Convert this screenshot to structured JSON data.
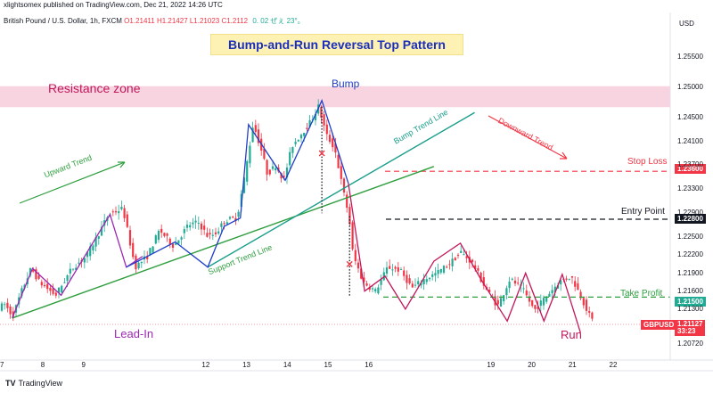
{
  "header": {
    "publisher_line": "xlightsomex published on TradingView.com, Dec 21, 2022 14:26 UTC",
    "symbol": "British Pound / U.S. Dollar, 1h, FXCM",
    "ohlc": "O1.21411  H1.21427  L1.21023  C1.2112",
    "change": "0. 02 ぜぇ 23°。"
  },
  "axis": {
    "currency": "USD",
    "brand": "TradingView",
    "brand_logo": "TV"
  },
  "chart_data": {
    "type": "candlestick",
    "title": "Bump-and-Run Reversal Top Pattern",
    "ylim": [
      1.2045,
      1.2625
    ],
    "yticks": [
      1.255,
      1.25,
      1.245,
      1.241,
      1.237,
      1.233,
      1.229,
      1.225,
      1.222,
      1.219,
      1.216,
      1.213,
      1.2072
    ],
    "xticks": [
      {
        "label": "7",
        "x": 7
      },
      {
        "label": "8",
        "x": 8
      },
      {
        "label": "9",
        "x": 9
      },
      {
        "label": "12",
        "x": 12
      },
      {
        "label": "13",
        "x": 13
      },
      {
        "label": "14",
        "x": 14
      },
      {
        "label": "15",
        "x": 15
      },
      {
        "label": "16",
        "x": 16
      },
      {
        "label": "19",
        "x": 19
      },
      {
        "label": "20",
        "x": 20
      },
      {
        "label": "21",
        "x": 21
      },
      {
        "label": "22",
        "x": 22
      }
    ],
    "xlim": [
      6.95,
      23.4
    ],
    "price_path": [
      [
        6.95,
        1.2132
      ],
      [
        7.1,
        1.2138
      ],
      [
        7.3,
        1.2118
      ],
      [
        7.5,
        1.2158
      ],
      [
        7.75,
        1.2198
      ],
      [
        7.95,
        1.2175
      ],
      [
        8.35,
        1.2153
      ],
      [
        8.75,
        1.2198
      ],
      [
        9.1,
        1.2218
      ],
      [
        9.4,
        1.2255
      ],
      [
        9.65,
        1.2288
      ],
      [
        10,
        1.2298
      ],
      [
        10.3,
        1.22
      ],
      [
        10.6,
        1.2218
      ],
      [
        10.9,
        1.2262
      ],
      [
        11.25,
        1.2235
      ],
      [
        11.6,
        1.227
      ],
      [
        11.85,
        1.2275
      ],
      [
        12.1,
        1.225
      ],
      [
        12.3,
        1.2258
      ],
      [
        12.5,
        1.2278
      ],
      [
        12.8,
        1.2282
      ],
      [
        13,
        1.2355
      ],
      [
        13.2,
        1.244
      ],
      [
        13.4,
        1.2395
      ],
      [
        13.55,
        1.2355
      ],
      [
        13.75,
        1.237
      ],
      [
        13.95,
        1.2345
      ],
      [
        14.15,
        1.2402
      ],
      [
        14.35,
        1.242
      ],
      [
        14.6,
        1.2442
      ],
      [
        14.8,
        1.2468
      ],
      [
        15,
        1.242
      ],
      [
        15.2,
        1.2398
      ],
      [
        15.4,
        1.233
      ],
      [
        15.55,
        1.2285
      ],
      [
        15.65,
        1.222
      ],
      [
        15.9,
        1.2175
      ],
      [
        16.2,
        1.216
      ],
      [
        16.5,
        1.22
      ],
      [
        16.8,
        1.2195
      ],
      [
        17.1,
        1.2165
      ],
      [
        17.4,
        1.218
      ],
      [
        17.7,
        1.219
      ],
      [
        18,
        1.2205
      ],
      [
        18.3,
        1.2225
      ],
      [
        18.6,
        1.2205
      ],
      [
        18.9,
        1.2165
      ],
      [
        19.2,
        1.2135
      ],
      [
        19.5,
        1.218
      ],
      [
        19.8,
        1.2165
      ],
      [
        20.1,
        1.2128
      ],
      [
        20.4,
        1.2152
      ],
      [
        20.7,
        1.2175
      ],
      [
        21,
        1.2185
      ],
      [
        21.25,
        1.215
      ],
      [
        21.5,
        1.2112
      ]
    ],
    "annotations": {
      "resistance_zone": {
        "label": "Resistance zone",
        "y_top": 1.2502,
        "y_bottom": 1.2467
      },
      "bump": {
        "label": "Bump"
      },
      "lead_in": {
        "label": "Lead-In"
      },
      "run": {
        "label": "Run"
      },
      "upward_trend": {
        "label": "Upward Trend"
      },
      "downward_trend": {
        "label": "Downward Trend"
      },
      "bump_trend_line": {
        "label": "Bump Trend Line"
      },
      "support_trend_line": {
        "label": "Support Trend Line"
      },
      "stop_loss": {
        "label": "Stop Loss",
        "value": "1.23600"
      },
      "entry_point": {
        "label": "Entry Point",
        "value": "1.22800"
      },
      "take_profit": {
        "label": "Take Profit",
        "value": "1.21500"
      },
      "current": {
        "symbol": "GBPUSD",
        "value": "1.21127",
        "countdown": "33:23"
      }
    },
    "colors": {
      "up": "#22ab94",
      "down": "#f23645",
      "pattern": "#1f3ec9",
      "run_line": "#c2185b",
      "lead_in": "#9c27b0",
      "support": "#2e9e3e",
      "bump_line": "#1a9e8b",
      "resistance": "#f8d3e0"
    }
  }
}
